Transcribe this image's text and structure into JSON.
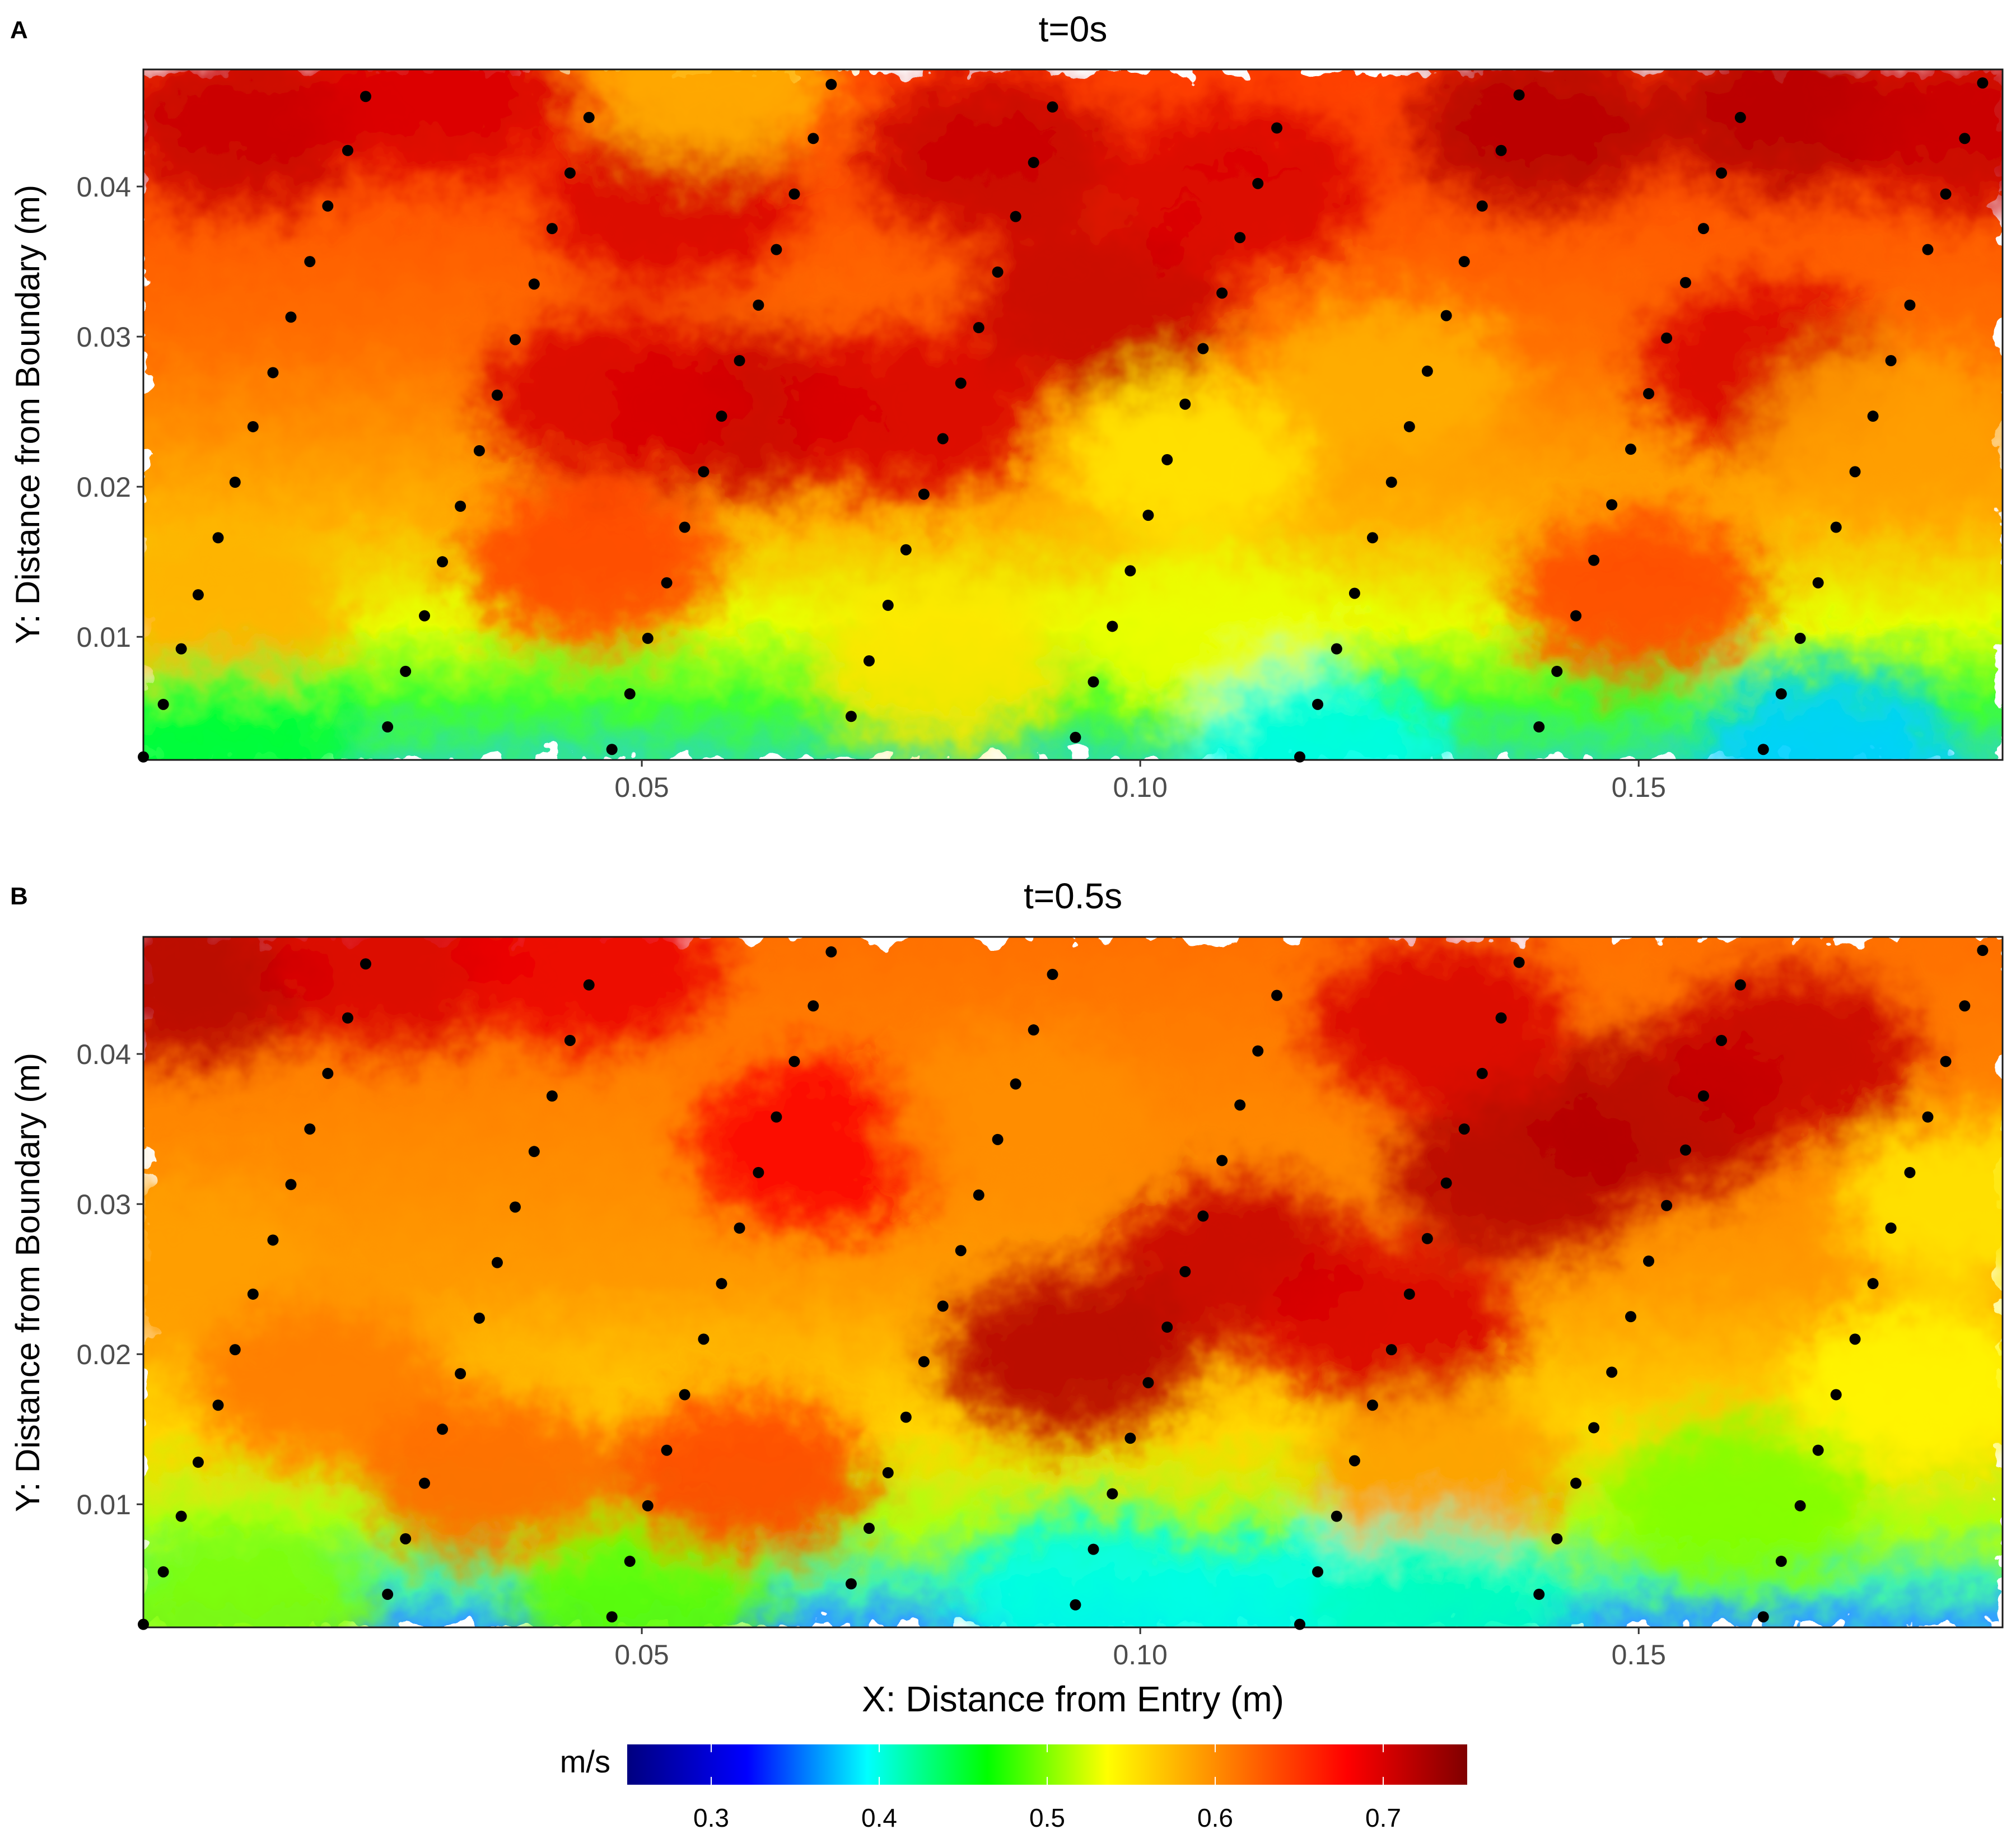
{
  "chart_data": [
    {
      "panel_label": "A",
      "title": "t=0s",
      "type": "heatmap",
      "xlabel": "",
      "ylabel": "Y: Distance from Boundary (m)",
      "xlim": [
        0.0,
        0.1865
      ],
      "ylim": [
        0.0018,
        0.0478
      ],
      "x_ticks": [
        0.05,
        0.1,
        0.15
      ],
      "x_tick_labels": [
        "0.05",
        "0.10",
        "0.15"
      ],
      "y_ticks": [
        0.01,
        0.02,
        0.03,
        0.04
      ],
      "y_tick_labels": [
        "0.01",
        "0.02",
        "0.03",
        "0.04"
      ],
      "grid": false,
      "field_description": "velocity magnitude field (m/s); lowest (~0.45-0.50) near boundary, highest (~0.70-0.72) at top",
      "blobs": [
        {
          "x": 0.01,
          "y": 0.044,
          "value": 0.71
        },
        {
          "x": 0.03,
          "y": 0.046,
          "value": 0.7
        },
        {
          "x": 0.053,
          "y": 0.039,
          "value": 0.7
        },
        {
          "x": 0.06,
          "y": 0.025,
          "value": 0.71
        },
        {
          "x": 0.047,
          "y": 0.026,
          "value": 0.7
        },
        {
          "x": 0.085,
          "y": 0.042,
          "value": 0.71
        },
        {
          "x": 0.096,
          "y": 0.032,
          "value": 0.71
        },
        {
          "x": 0.077,
          "y": 0.025,
          "value": 0.7
        },
        {
          "x": 0.11,
          "y": 0.04,
          "value": 0.7
        },
        {
          "x": 0.14,
          "y": 0.044,
          "value": 0.72
        },
        {
          "x": 0.165,
          "y": 0.045,
          "value": 0.72
        },
        {
          "x": 0.183,
          "y": 0.044,
          "value": 0.71
        },
        {
          "x": 0.163,
          "y": 0.028,
          "value": 0.7
        },
        {
          "x": 0.057,
          "y": 0.047,
          "value": 0.58
        },
        {
          "x": 0.105,
          "y": 0.022,
          "value": 0.55
        },
        {
          "x": 0.107,
          "y": 0.01,
          "value": 0.53
        },
        {
          "x": 0.125,
          "y": 0.027,
          "value": 0.58
        },
        {
          "x": 0.175,
          "y": 0.024,
          "value": 0.59
        },
        {
          "x": 0.008,
          "y": 0.012,
          "value": 0.58
        },
        {
          "x": 0.08,
          "y": 0.008,
          "value": 0.55
        },
        {
          "x": 0.118,
          "y": 0.0025,
          "value": 0.4
        },
        {
          "x": 0.169,
          "y": 0.0025,
          "value": 0.38
        },
        {
          "x": 0.008,
          "y": 0.0025,
          "value": 0.45
        },
        {
          "x": 0.045,
          "y": 0.015,
          "value": 0.64
        },
        {
          "x": 0.15,
          "y": 0.013,
          "value": 0.64
        }
      ],
      "dots": [
        [
          0.0,
          0.002
        ],
        [
          0.002,
          0.0055
        ],
        [
          0.0038,
          0.0092
        ],
        [
          0.0055,
          0.0128
        ],
        [
          0.0075,
          0.0166
        ],
        [
          0.0092,
          0.0203
        ],
        [
          0.011,
          0.024
        ],
        [
          0.013,
          0.0276
        ],
        [
          0.0148,
          0.0313
        ],
        [
          0.0167,
          0.035
        ],
        [
          0.0185,
          0.0387
        ],
        [
          0.0205,
          0.0424
        ],
        [
          0.0223,
          0.046
        ],
        [
          0.0245,
          0.004
        ],
        [
          0.0263,
          0.0077
        ],
        [
          0.0282,
          0.0114
        ],
        [
          0.03,
          0.015
        ],
        [
          0.0318,
          0.0187
        ],
        [
          0.0337,
          0.0224
        ],
        [
          0.0355,
          0.0261
        ],
        [
          0.0373,
          0.0298
        ],
        [
          0.0392,
          0.0335
        ],
        [
          0.041,
          0.0372
        ],
        [
          0.0428,
          0.0409
        ],
        [
          0.0447,
          0.0446
        ],
        [
          0.047,
          0.0025
        ],
        [
          0.0488,
          0.0062
        ],
        [
          0.0506,
          0.0099
        ],
        [
          0.0525,
          0.0136
        ],
        [
          0.0543,
          0.0173
        ],
        [
          0.0562,
          0.021
        ],
        [
          0.058,
          0.0247
        ],
        [
          0.0598,
          0.0284
        ],
        [
          0.0617,
          0.0321
        ],
        [
          0.0635,
          0.0358
        ],
        [
          0.0653,
          0.0395
        ],
        [
          0.0672,
          0.0432
        ],
        [
          0.069,
          0.0468
        ],
        [
          0.071,
          0.0047
        ],
        [
          0.0728,
          0.0084
        ],
        [
          0.0747,
          0.0121
        ],
        [
          0.0765,
          0.0158
        ],
        [
          0.0783,
          0.0195
        ],
        [
          0.0802,
          0.0232
        ],
        [
          0.082,
          0.0269
        ],
        [
          0.0838,
          0.0306
        ],
        [
          0.0857,
          0.0343
        ],
        [
          0.0875,
          0.038
        ],
        [
          0.0893,
          0.0416
        ],
        [
          0.0912,
          0.0453
        ],
        [
          0.0935,
          0.0033
        ],
        [
          0.0953,
          0.007
        ],
        [
          0.0972,
          0.0107
        ],
        [
          0.099,
          0.0144
        ],
        [
          0.1008,
          0.0181
        ],
        [
          0.1027,
          0.0218
        ],
        [
          0.1045,
          0.0255
        ],
        [
          0.1063,
          0.0292
        ],
        [
          0.1082,
          0.0329
        ],
        [
          0.11,
          0.0366
        ],
        [
          0.1118,
          0.0402
        ],
        [
          0.1137,
          0.0439
        ],
        [
          0.116,
          0.002
        ],
        [
          0.1178,
          0.0055
        ],
        [
          0.1197,
          0.0092
        ],
        [
          0.1215,
          0.0129
        ],
        [
          0.1233,
          0.0166
        ],
        [
          0.1252,
          0.0203
        ],
        [
          0.127,
          0.024
        ],
        [
          0.1288,
          0.0277
        ],
        [
          0.1307,
          0.0314
        ],
        [
          0.1325,
          0.035
        ],
        [
          0.1343,
          0.0387
        ],
        [
          0.1362,
          0.0424
        ],
        [
          0.138,
          0.0461
        ],
        [
          0.14,
          0.004
        ],
        [
          0.1418,
          0.0077
        ],
        [
          0.1437,
          0.0114
        ],
        [
          0.1455,
          0.0151
        ],
        [
          0.1473,
          0.0188
        ],
        [
          0.1492,
          0.0225
        ],
        [
          0.151,
          0.0262
        ],
        [
          0.1528,
          0.0299
        ],
        [
          0.1547,
          0.0336
        ],
        [
          0.1565,
          0.0372
        ],
        [
          0.1583,
          0.0409
        ],
        [
          0.1602,
          0.0446
        ],
        [
          0.1625,
          0.0025
        ],
        [
          0.1643,
          0.0062
        ],
        [
          0.1662,
          0.0099
        ],
        [
          0.168,
          0.0136
        ],
        [
          0.1698,
          0.0173
        ],
        [
          0.1717,
          0.021
        ],
        [
          0.1735,
          0.0247
        ],
        [
          0.1753,
          0.0284
        ],
        [
          0.1772,
          0.0321
        ],
        [
          0.179,
          0.0358
        ],
        [
          0.1808,
          0.0395
        ],
        [
          0.1827,
          0.0432
        ],
        [
          0.1845,
          0.0469
        ]
      ]
    },
    {
      "panel_label": "B",
      "title": "t=0.5s",
      "type": "heatmap",
      "xlabel": "X: Distance from Entry (m)",
      "ylabel": "Y: Distance from Boundary (m)",
      "xlim": [
        0.0,
        0.1865
      ],
      "ylim": [
        0.0018,
        0.0478
      ],
      "x_ticks": [
        0.05,
        0.1,
        0.15
      ],
      "x_tick_labels": [
        "0.05",
        "0.10",
        "0.15"
      ],
      "y_ticks": [
        0.01,
        0.02,
        0.03,
        0.04
      ],
      "y_tick_labels": [
        "0.01",
        "0.02",
        "0.03",
        "0.04"
      ],
      "grid": false,
      "field_description": "velocity magnitude field (m/s); lowest (~0.40-0.50) near boundary, highest (~0.70-0.72) upper right",
      "blobs": [
        {
          "x": 0.005,
          "y": 0.045,
          "value": 0.72
        },
        {
          "x": 0.025,
          "y": 0.046,
          "value": 0.7
        },
        {
          "x": 0.045,
          "y": 0.046,
          "value": 0.69
        },
        {
          "x": 0.138,
          "y": 0.032,
          "value": 0.72
        },
        {
          "x": 0.152,
          "y": 0.036,
          "value": 0.72
        },
        {
          "x": 0.165,
          "y": 0.04,
          "value": 0.71
        },
        {
          "x": 0.13,
          "y": 0.042,
          "value": 0.7
        },
        {
          "x": 0.11,
          "y": 0.026,
          "value": 0.71
        },
        {
          "x": 0.093,
          "y": 0.02,
          "value": 0.72
        },
        {
          "x": 0.125,
          "y": 0.022,
          "value": 0.7
        },
        {
          "x": 0.068,
          "y": 0.034,
          "value": 0.68
        },
        {
          "x": 0.004,
          "y": 0.026,
          "value": 0.59
        },
        {
          "x": 0.018,
          "y": 0.018,
          "value": 0.61
        },
        {
          "x": 0.088,
          "y": 0.036,
          "value": 0.6
        },
        {
          "x": 0.183,
          "y": 0.03,
          "value": 0.55
        },
        {
          "x": 0.178,
          "y": 0.018,
          "value": 0.54
        },
        {
          "x": 0.16,
          "y": 0.01,
          "value": 0.5
        },
        {
          "x": 0.13,
          "y": 0.012,
          "value": 0.59
        },
        {
          "x": 0.095,
          "y": 0.004,
          "value": 0.4
        },
        {
          "x": 0.115,
          "y": 0.003,
          "value": 0.4
        },
        {
          "x": 0.13,
          "y": 0.003,
          "value": 0.41
        },
        {
          "x": 0.05,
          "y": 0.004,
          "value": 0.49
        },
        {
          "x": 0.01,
          "y": 0.003,
          "value": 0.5
        },
        {
          "x": 0.035,
          "y": 0.012,
          "value": 0.62
        },
        {
          "x": 0.06,
          "y": 0.012,
          "value": 0.64
        }
      ],
      "dots_same_as_panel": "A"
    }
  ],
  "colorbar": {
    "title": "m/s",
    "range": [
      0.25,
      0.75
    ],
    "ticks": [
      0.3,
      0.4,
      0.5,
      0.6,
      0.7
    ],
    "tick_labels": [
      "0.3",
      "0.4",
      "0.5",
      "0.6",
      "0.7"
    ],
    "colors": [
      "#000080",
      "#0000ff",
      "#00ffff",
      "#00ff00",
      "#ffff00",
      "#ff8000",
      "#ff0000",
      "#800000"
    ]
  },
  "colors": {
    "dot": "#000000",
    "frame": "#1a1a1a",
    "tick_text": "#4d4d4d",
    "title_text": "#000000"
  }
}
